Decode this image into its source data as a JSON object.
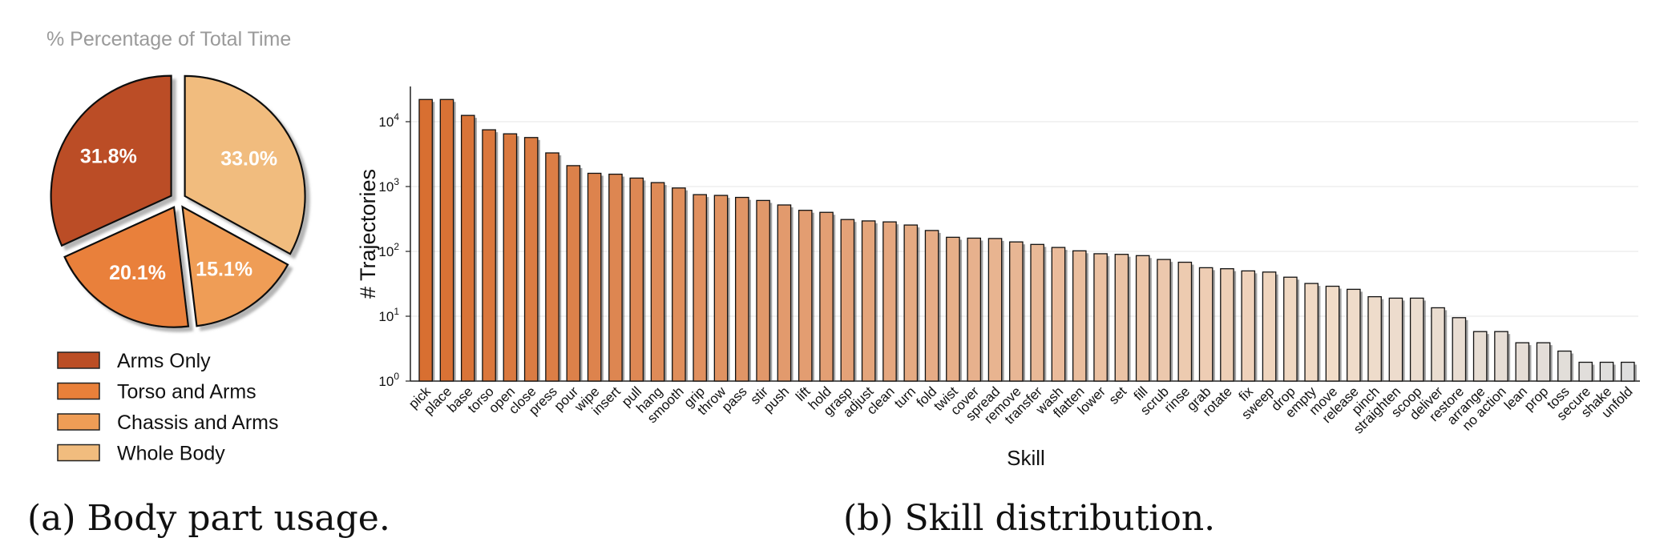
{
  "captions": {
    "a": "(a) Body part usage.",
    "b": "(b) Skill distribution."
  },
  "chart_data": [
    {
      "type": "pie",
      "title": "% Percentage of Total Time",
      "exploded": true,
      "legend_position": "bottom",
      "slices": [
        {
          "label": "Arms Only",
          "value": 31.8,
          "display": "31.8%",
          "color": "#bb4e25"
        },
        {
          "label": "Torso and Arms",
          "value": 20.1,
          "display": "20.1%",
          "color": "#e9803a"
        },
        {
          "label": "Chassis and Arms",
          "value": 15.1,
          "display": "15.1%",
          "color": "#ef9d56"
        },
        {
          "label": "Whole Body",
          "value": 33.0,
          "display": "33.0%",
          "color": "#f1bc7e"
        }
      ]
    },
    {
      "type": "bar",
      "scale": "log",
      "xlabel": "Skill",
      "ylabel": "# Trajectories",
      "ylim": [
        1,
        30000
      ],
      "yticks": [
        "10^0",
        "10^1",
        "10^2",
        "10^3",
        "10^4"
      ],
      "grid": true,
      "color_gradient": [
        "#d86f31",
        "#f1dcc8",
        "#dedede"
      ],
      "categories": [
        "pick",
        "place",
        "base",
        "torso",
        "open",
        "close",
        "press",
        "pour",
        "wipe",
        "insert",
        "pull",
        "hang",
        "smooth",
        "grip",
        "throw",
        "pass",
        "stir",
        "push",
        "lift",
        "hold",
        "grasp",
        "adjust",
        "clean",
        "turn",
        "fold",
        "twist",
        "cover",
        "spread",
        "remove",
        "transfer",
        "wash",
        "flatten",
        "lower",
        "set",
        "fill",
        "scrub",
        "rinse",
        "grab",
        "rotate",
        "fix",
        "sweep",
        "drop",
        "empty",
        "move",
        "release",
        "pinch",
        "straighten",
        "scoop",
        "deliver",
        "restore",
        "arrange",
        "no action",
        "lean",
        "prop",
        "toss",
        "secure",
        "shake",
        "unfold"
      ],
      "values": [
        22000,
        22000,
        12500,
        7500,
        6500,
        5700,
        3300,
        2100,
        1600,
        1550,
        1350,
        1150,
        950,
        750,
        730,
        680,
        610,
        520,
        430,
        400,
        310,
        295,
        285,
        255,
        210,
        165,
        160,
        158,
        140,
        128,
        115,
        102,
        92,
        90,
        86,
        75,
        68,
        56,
        54,
        50,
        48,
        40,
        32,
        29,
        26,
        20,
        19,
        19,
        13.5,
        9.5,
        5.8,
        5.8,
        3.9,
        3.9,
        2.9,
        1.95,
        1.95,
        1.95
      ]
    }
  ]
}
